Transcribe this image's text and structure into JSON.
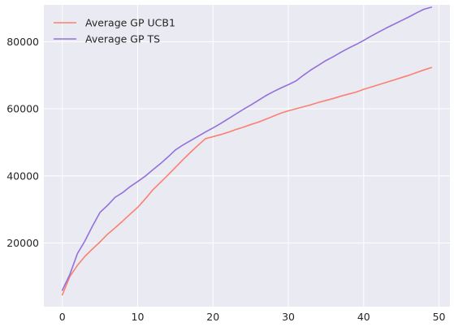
{
  "chart_data": {
    "type": "line",
    "title": "",
    "xlabel": "",
    "ylabel": "",
    "xlim": [
      -2.45,
      51.45
    ],
    "ylim": [
      1000,
      91000
    ],
    "xticks": [
      0,
      10,
      20,
      30,
      40,
      50
    ],
    "yticks": [
      20000,
      40000,
      60000,
      80000
    ],
    "xtick_labels": [
      "0",
      "10",
      "20",
      "30",
      "40",
      "50"
    ],
    "ytick_labels": [
      "20000",
      "40000",
      "60000",
      "80000"
    ],
    "grid": true,
    "legend_position": "top-left",
    "background_color": "#eaeaf2",
    "grid_color": "#ffffff",
    "x": [
      0,
      1,
      2,
      3,
      4,
      5,
      6,
      7,
      8,
      9,
      10,
      11,
      12,
      13,
      14,
      15,
      16,
      17,
      18,
      19,
      20,
      21,
      22,
      23,
      24,
      25,
      26,
      27,
      28,
      29,
      30,
      31,
      32,
      33,
      34,
      35,
      36,
      37,
      38,
      39,
      40,
      41,
      42,
      43,
      44,
      45,
      46,
      47,
      48,
      49
    ],
    "series": [
      {
        "name": "Average GP UCB1",
        "color": "#fa8072",
        "values": [
          4500,
          10000,
          13300,
          16000,
          18200,
          20300,
          22600,
          24500,
          26500,
          28600,
          30600,
          33100,
          35800,
          38000,
          40200,
          42500,
          44800,
          47000,
          49100,
          51100,
          51700,
          52300,
          53000,
          53800,
          54500,
          55300,
          56000,
          56900,
          57800,
          58700,
          59400,
          60000,
          60600,
          61200,
          61900,
          62500,
          63100,
          63800,
          64400,
          65000,
          65800,
          66500,
          67200,
          67900,
          68600,
          69300,
          70000,
          70800,
          71600,
          72300
        ]
      },
      {
        "name": "Average GP TS",
        "color": "#9370db",
        "values": [
          5900,
          10600,
          16800,
          20600,
          25000,
          29100,
          31200,
          33600,
          35000,
          36800,
          38300,
          39900,
          41800,
          43600,
          45600,
          47700,
          49200,
          50500,
          51800,
          53100,
          54300,
          55600,
          57000,
          58400,
          59800,
          61100,
          62500,
          63900,
          65100,
          66200,
          67200,
          68300,
          70000,
          71600,
          73000,
          74400,
          75600,
          76900,
          78100,
          79200,
          80400,
          81700,
          82900,
          84100,
          85200,
          86300,
          87400,
          88600,
          89700,
          90300
        ]
      }
    ]
  }
}
